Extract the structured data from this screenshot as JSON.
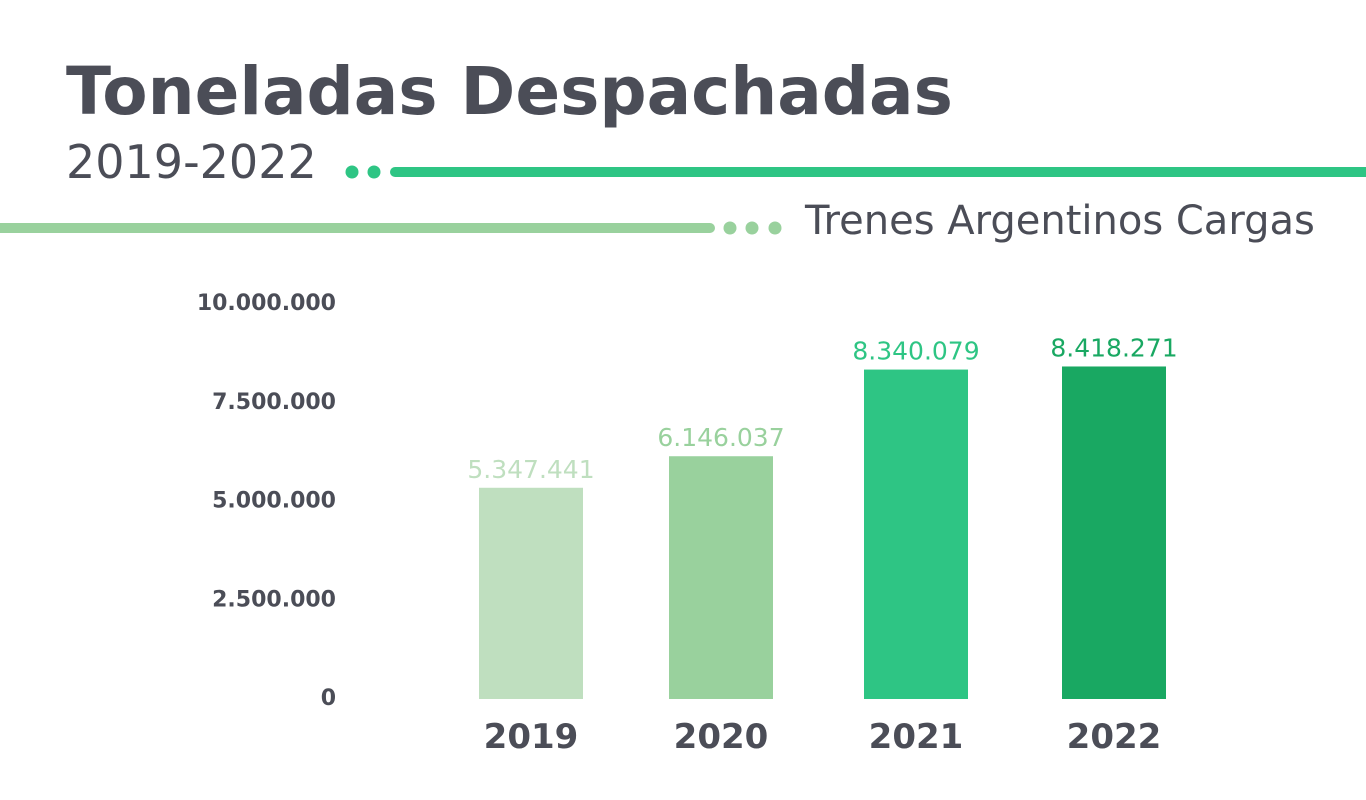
{
  "chart_data": {
    "type": "bar",
    "title": "Toneladas Despachadas",
    "subtitle": "2019-2022",
    "source": "Trenes Argentinos Cargas",
    "categories": [
      "2019",
      "2020",
      "2021",
      "2022"
    ],
    "values": [
      5347441,
      6146037,
      8340079,
      8418271
    ],
    "value_labels": [
      "5.347.441",
      "6.146.037",
      "8.340.079",
      "8.418.271"
    ],
    "colors": [
      "#bfdfbf",
      "#99d19d",
      "#2ec584",
      "#19a862"
    ],
    "ylim": [
      0,
      10000000
    ],
    "yticks": [
      0,
      2500000,
      5000000,
      7500000,
      10000000
    ],
    "ytick_labels": [
      "0",
      "2.500.000",
      "5.000.000",
      "7.500.000",
      "10.000.000"
    ],
    "grid": false,
    "xlabel": "",
    "ylabel": ""
  },
  "decor": {
    "accent_dark": "#2ec584",
    "accent_light": "#99d19d"
  }
}
